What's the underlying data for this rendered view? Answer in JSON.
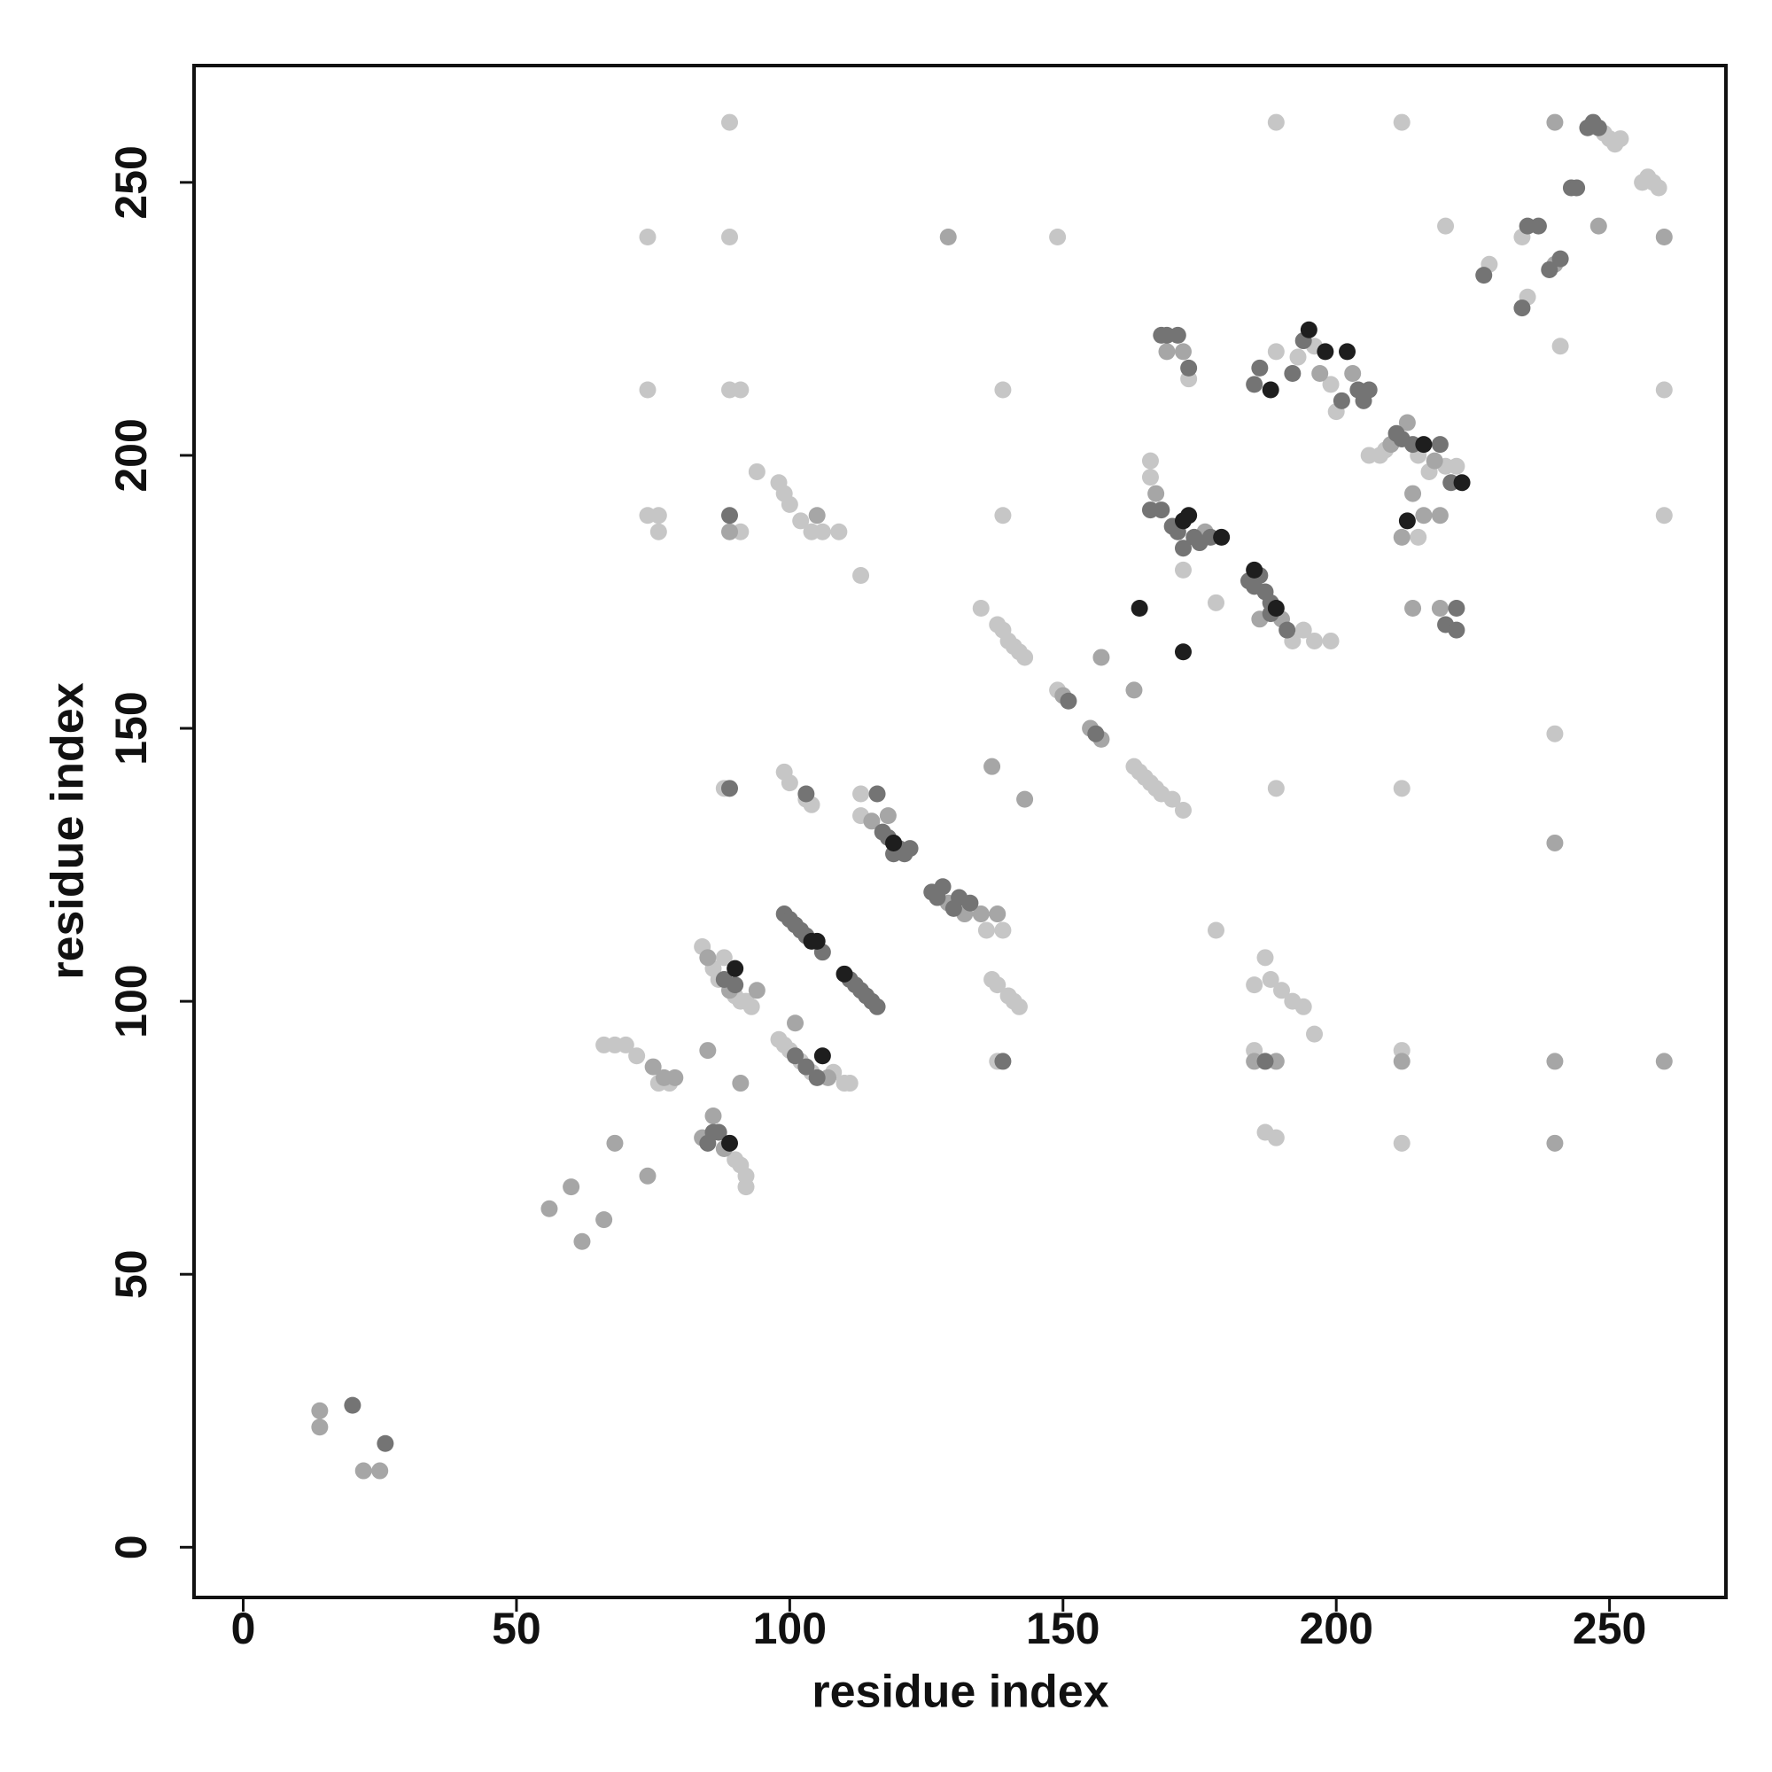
{
  "chart_data": {
    "type": "scatter",
    "xlabel": "residue index",
    "ylabel": "residue index",
    "xlim": [
      -9,
      271.3
    ],
    "ylim": [
      -9.2,
      271.4
    ],
    "xticks": [
      0,
      50,
      100,
      150,
      200,
      250
    ],
    "yticks": [
      0,
      50,
      100,
      150,
      200,
      250
    ],
    "series": [
      {
        "color": "#c6c6c6",
        "x": [
          66,
          68,
          70,
          72,
          76,
          78,
          84,
          86,
          87,
          88,
          90,
          91,
          92,
          93,
          90,
          91,
          92,
          92,
          98,
          99,
          100,
          102,
          104,
          108,
          110,
          111,
          99,
          100,
          103,
          104,
          98,
          99,
          100,
          102,
          104,
          106,
          109,
          113,
          74,
          76,
          76,
          91,
          94,
          88,
          113,
          113,
          136,
          139,
          137,
          138,
          140,
          141,
          142,
          138,
          135,
          138,
          139,
          140,
          141,
          142,
          143,
          139,
          139,
          149,
          163,
          164,
          165,
          166,
          167,
          168,
          170,
          172,
          166,
          166,
          172,
          178,
          173,
          192,
          194,
          196,
          199,
          189,
          193,
          196,
          199,
          200,
          206,
          208,
          209,
          215,
          217,
          220,
          222,
          215,
          228,
          235,
          234,
          241,
          249,
          250,
          251,
          252,
          256,
          257,
          258,
          259,
          89,
          189,
          212,
          74,
          89,
          149,
          220,
          74,
          89,
          91,
          260,
          260,
          240,
          189,
          212,
          178,
          185,
          187,
          188,
          190,
          192,
          194,
          196,
          212,
          187,
          189,
          212,
          185
        ],
        "values": [
          92,
          92,
          92,
          90,
          85,
          85,
          110,
          106,
          104,
          108,
          101,
          100,
          100,
          99,
          71,
          70,
          66,
          68,
          93,
          92,
          91,
          89,
          87,
          87,
          85,
          85,
          142,
          140,
          137,
          136,
          195,
          193,
          191,
          188,
          186,
          186,
          186,
          178,
          189,
          189,
          186,
          186,
          197,
          139,
          138,
          134,
          113,
          113,
          104,
          103,
          101,
          100,
          99,
          89,
          172,
          169,
          168,
          166,
          165,
          164,
          163,
          189,
          212,
          157,
          143,
          142,
          141,
          140,
          139,
          138,
          137,
          135,
          199,
          196,
          179,
          173,
          214,
          166,
          168,
          166,
          166,
          219,
          218,
          220,
          213,
          208,
          200,
          200,
          201,
          200,
          197,
          198,
          198,
          185,
          235,
          229,
          240,
          220,
          259,
          258,
          257,
          258,
          250,
          251,
          250,
          249,
          261,
          261,
          261,
          240,
          240,
          240,
          242,
          212,
          212,
          212,
          212,
          189,
          149,
          139,
          139,
          113,
          103,
          108,
          104,
          102,
          100,
          99,
          94,
          91,
          76,
          75,
          74,
          91
        ]
      },
      {
        "color": "#a6a6a6",
        "x": [
          14,
          14,
          22,
          25,
          56,
          62,
          60,
          66,
          68,
          74,
          84,
          86,
          88,
          91,
          85,
          75,
          77,
          79,
          85,
          89,
          94,
          101,
          107,
          105,
          89,
          115,
          118,
          129,
          132,
          135,
          138,
          137,
          143,
          157,
          163,
          150,
          155,
          157,
          167,
          176,
          169,
          172,
          190,
          186,
          197,
          203,
          210,
          213,
          218,
          214,
          216,
          219,
          212,
          214,
          219,
          260,
          129,
          240,
          240,
          248,
          240,
          240,
          260,
          240,
          212,
          185,
          189
        ],
        "values": [
          25,
          22,
          14,
          14,
          62,
          56,
          66,
          60,
          74,
          68,
          75,
          79,
          73,
          85,
          91,
          88,
          86,
          86,
          108,
          102,
          102,
          96,
          86,
          189,
          186,
          133,
          134,
          118,
          116,
          116,
          116,
          143,
          137,
          163,
          157,
          156,
          150,
          148,
          193,
          186,
          219,
          219,
          170,
          170,
          215,
          215,
          202,
          206,
          199,
          193,
          189,
          189,
          185,
          172,
          172,
          240,
          240,
          261,
          235,
          242,
          129,
          89,
          89,
          74,
          89,
          89,
          89
        ]
      },
      {
        "color": "#747474",
        "x": [
          20,
          26,
          85,
          87,
          86,
          88,
          90,
          101,
          103,
          105,
          99,
          100,
          101,
          102,
          103,
          106,
          111,
          112,
          113,
          114,
          115,
          116,
          116,
          117,
          118,
          120,
          121,
          122,
          119,
          126,
          127,
          128,
          130,
          131,
          133,
          89,
          139,
          89,
          103,
          151,
          156,
          166,
          168,
          170,
          171,
          174,
          175,
          177,
          172,
          168,
          169,
          171,
          173,
          184,
          185,
          186,
          187,
          188,
          191,
          188,
          185,
          186,
          192,
          194,
          201,
          204,
          205,
          206,
          211,
          212,
          214,
          219,
          221,
          220,
          222,
          222,
          227,
          234,
          235,
          237,
          239,
          241,
          243,
          244,
          246,
          247,
          248,
          187
        ],
        "values": [
          26,
          19,
          74,
          76,
          76,
          104,
          103,
          90,
          88,
          86,
          116,
          115,
          114,
          113,
          112,
          109,
          104,
          103,
          102,
          101,
          100,
          99,
          138,
          131,
          130,
          128,
          127,
          128,
          127,
          120,
          119,
          121,
          117,
          119,
          118,
          139,
          89,
          189,
          138,
          155,
          149,
          190,
          190,
          187,
          186,
          185,
          184,
          185,
          183,
          222,
          222,
          222,
          216,
          177,
          176,
          178,
          175,
          173,
          168,
          171,
          213,
          216,
          215,
          221,
          210,
          212,
          210,
          212,
          204,
          203,
          202,
          202,
          195,
          169,
          168,
          172,
          233,
          227,
          242,
          242,
          234,
          236,
          249,
          249,
          260,
          261,
          260,
          89
        ]
      },
      {
        "color": "#1e1e1e",
        "x": [
          90,
          106,
          104,
          105,
          110,
          119,
          164,
          172,
          172,
          173,
          179,
          189,
          185,
          188,
          195,
          198,
          202,
          216,
          223,
          213,
          89
        ],
        "values": [
          106,
          90,
          111,
          111,
          105,
          129,
          172,
          164,
          188,
          189,
          185,
          172,
          179,
          212,
          223,
          219,
          219,
          202,
          195,
          188,
          74
        ]
      }
    ]
  }
}
